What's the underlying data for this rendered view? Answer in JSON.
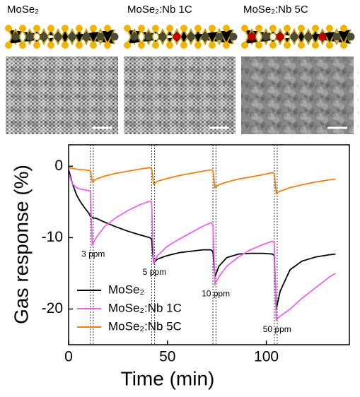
{
  "panels": [
    {
      "label": "MoSe₂"
    },
    {
      "label": "MoSe₂:Nb 1C"
    },
    {
      "label": "MoSe₂:Nb 5C"
    }
  ],
  "chart_data": {
    "type": "line",
    "xlabel": "Time (min)",
    "ylabel": "Gas response (%)",
    "xlim": [
      0,
      142
    ],
    "ylim": [
      -25,
      3
    ],
    "xticks": [
      0,
      50,
      100
    ],
    "yticks": [
      0,
      -10,
      -20
    ],
    "legend": "lower-left",
    "x": [
      0,
      2,
      4,
      6,
      8,
      10,
      11,
      12,
      14,
      18,
      24,
      30,
      36,
      41,
      42,
      43,
      45,
      50,
      56,
      62,
      68,
      72,
      73,
      74,
      76,
      80,
      86,
      92,
      98,
      103,
      104,
      105,
      107,
      112,
      118,
      125,
      132,
      135
    ],
    "series": [
      {
        "name": "MoSe₂",
        "color": "#000000",
        "values": [
          -0.5,
          -2.5,
          -4,
          -5,
          -5.8,
          -6.5,
          -7,
          -7.2,
          -7.3,
          -7.8,
          -8.5,
          -9.1,
          -9.6,
          -10,
          -10.2,
          -13.5,
          -13,
          -12.5,
          -12.1,
          -11.9,
          -11.7,
          -11.7,
          -12,
          -15.5,
          -14,
          -12.8,
          -12.3,
          -12.2,
          -12.2,
          -12.3,
          -12.5,
          -20,
          -17.5,
          -14.5,
          -13.3,
          -12.7,
          -12.4,
          -12.3
        ]
      },
      {
        "name": "MoSe₂:Nb 1C",
        "color": "#f060f0",
        "values": [
          -1,
          -2.5,
          -3,
          -3.2,
          -3.3,
          -3.4,
          -3.5,
          -11,
          -10,
          -8.5,
          -7.2,
          -6.2,
          -5.4,
          -4.9,
          -5,
          -13.5,
          -12.5,
          -11.2,
          -10.2,
          -9.3,
          -8.4,
          -7.9,
          -8.2,
          -16.5,
          -15.5,
          -14,
          -12.7,
          -11.7,
          -11,
          -10.5,
          -10.7,
          -21.5,
          -21,
          -20,
          -18.5,
          -17,
          -15.5,
          -15
        ]
      },
      {
        "name": "MoSe₂:Nb 5C",
        "color": "#f07f10",
        "values": [
          -0.2,
          -0.3,
          -0.4,
          -0.5,
          -0.5,
          -0.6,
          -0.6,
          -2.2,
          -1.8,
          -1.4,
          -1,
          -0.7,
          -0.4,
          -0.2,
          -0.3,
          -2.5,
          -2.1,
          -1.7,
          -1.3,
          -1,
          -0.7,
          -0.5,
          -0.6,
          -3,
          -2.6,
          -2.2,
          -1.8,
          -1.5,
          -1.2,
          -0.9,
          -1,
          -3.8,
          -3.5,
          -3,
          -2.6,
          -2.2,
          -1.9,
          -1.8
        ]
      }
    ],
    "exposures": [
      {
        "start": 11,
        "end": 12.5,
        "label": "3 ppm"
      },
      {
        "start": 42,
        "end": 43.5,
        "label": "5 ppm"
      },
      {
        "start": 73,
        "end": 74.5,
        "label": "10 ppm"
      },
      {
        "start": 104,
        "end": 105.5,
        "label": "50 ppm"
      }
    ]
  }
}
